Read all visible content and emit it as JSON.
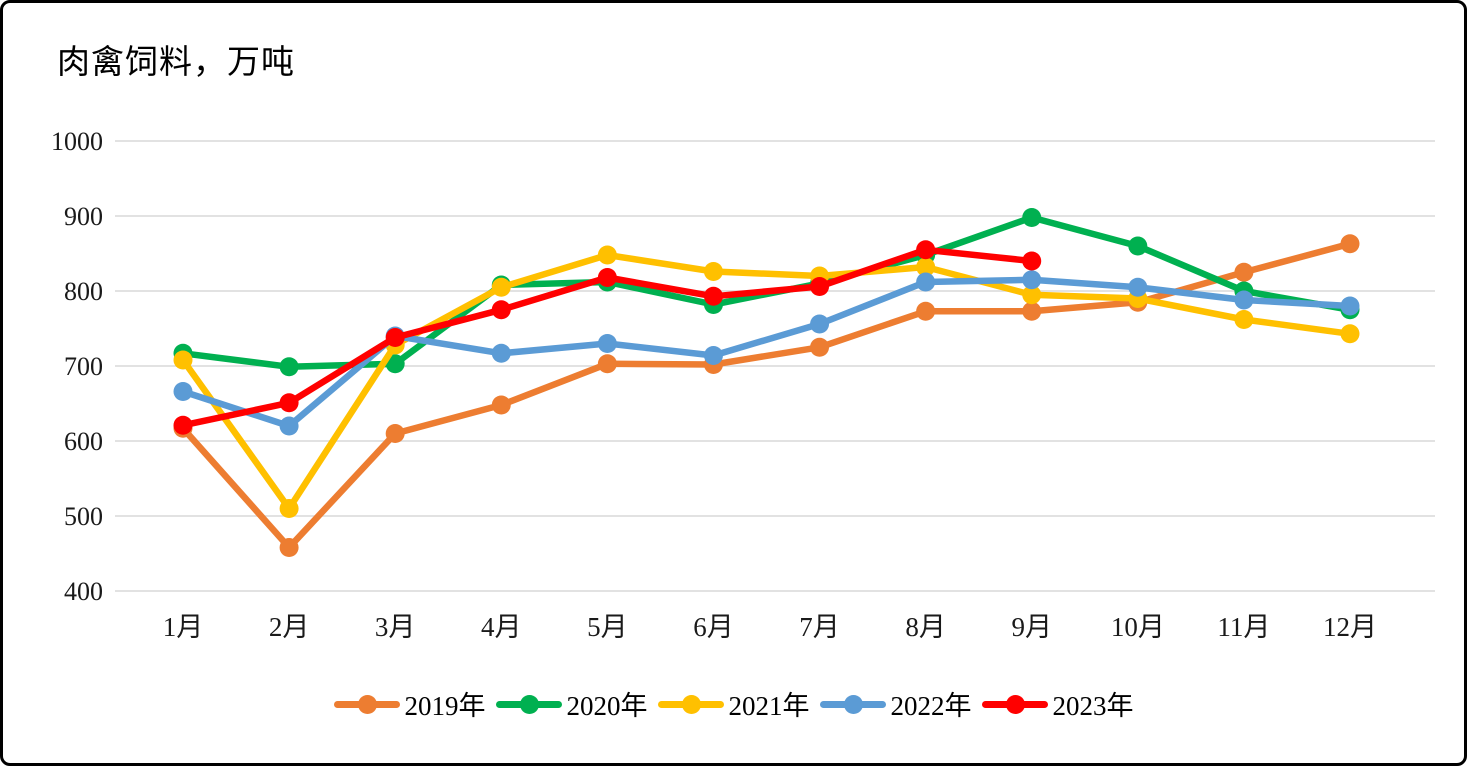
{
  "title": "肉禽饲料，万吨",
  "colors": {
    "grid": "#d9d9d9",
    "axis_text": "#1a1a1a",
    "background": "#ffffff",
    "border": "#000000"
  },
  "chart_data": {
    "type": "line",
    "title": "肉禽饲料，万吨",
    "xlabel": "",
    "ylabel": "万吨",
    "ylim": [
      400,
      1000
    ],
    "yticks": [
      400,
      500,
      600,
      700,
      800,
      900,
      1000
    ],
    "grid": true,
    "legend_position": "bottom",
    "categories": [
      "1月",
      "2月",
      "3月",
      "4月",
      "5月",
      "6月",
      "7月",
      "8月",
      "9月",
      "10月",
      "11月",
      "12月"
    ],
    "series": [
      {
        "name": "2019年",
        "color": "#ED7D31",
        "values": [
          617,
          458,
          610,
          648,
          703,
          702,
          725,
          773,
          773,
          785,
          825,
          863
        ]
      },
      {
        "name": "2020年",
        "color": "#00B050",
        "values": [
          717,
          699,
          703,
          808,
          812,
          782,
          810,
          848,
          898,
          860,
          800,
          775
        ]
      },
      {
        "name": "2021年",
        "color": "#FFC000",
        "values": [
          708,
          510,
          728,
          805,
          848,
          826,
          820,
          832,
          795,
          790,
          762,
          743
        ]
      },
      {
        "name": "2022年",
        "color": "#5B9BD5",
        "values": [
          666,
          620,
          740,
          717,
          730,
          714,
          756,
          812,
          815,
          805,
          788,
          780
        ]
      },
      {
        "name": "2023年",
        "color": "#FF0000",
        "values": [
          621,
          651,
          738,
          775,
          818,
          793,
          806,
          855,
          840,
          null,
          null,
          null
        ]
      }
    ]
  }
}
